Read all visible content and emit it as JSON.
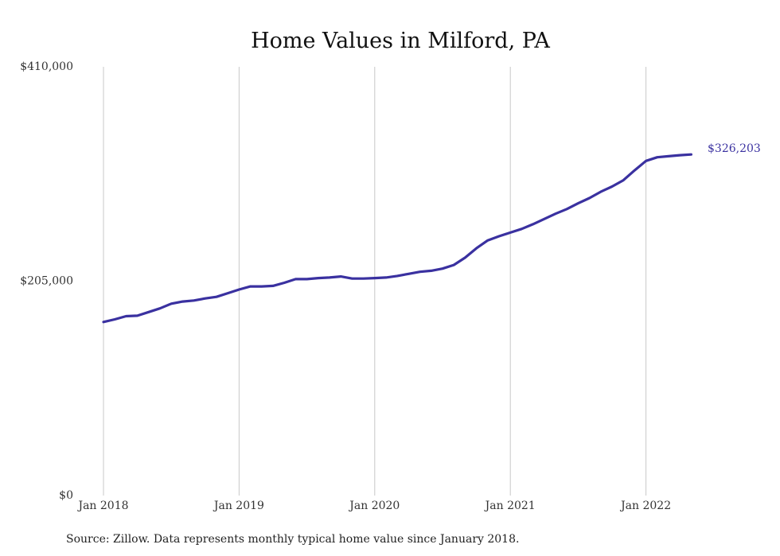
{
  "chart_data": {
    "type": "line",
    "title": "Home Values in Milford, PA",
    "xlabel": "",
    "ylabel": "",
    "ylim": [
      0,
      410000
    ],
    "y_ticks": [
      {
        "value": 0,
        "label": "$0"
      },
      {
        "value": 205000,
        "label": "$205,000"
      },
      {
        "value": 410000,
        "label": "$410,000"
      }
    ],
    "x_ticks": [
      {
        "value": "2018-01",
        "label": "Jan 2018"
      },
      {
        "value": "2019-01",
        "label": "Jan 2019"
      },
      {
        "value": "2020-01",
        "label": "Jan 2020"
      },
      {
        "value": "2021-01",
        "label": "Jan 2021"
      },
      {
        "value": "2022-01",
        "label": "Jan 2022"
      }
    ],
    "grid": "vertical",
    "line_color": "#3a31a0",
    "series": [
      {
        "x": [
          "2018-01",
          "2018-02",
          "2018-03",
          "2018-04",
          "2018-05",
          "2018-06",
          "2018-07",
          "2018-08",
          "2018-09",
          "2018-10",
          "2018-11",
          "2018-12",
          "2019-01",
          "2019-02",
          "2019-03",
          "2019-04",
          "2019-05",
          "2019-06",
          "2019-07",
          "2019-08",
          "2019-09",
          "2019-10",
          "2019-11",
          "2019-12",
          "2020-01",
          "2020-02",
          "2020-03",
          "2020-04",
          "2020-05",
          "2020-06",
          "2020-07",
          "2020-08",
          "2020-09",
          "2020-10",
          "2020-11",
          "2020-12",
          "2021-01",
          "2021-02",
          "2021-03",
          "2021-04",
          "2021-05",
          "2021-06",
          "2021-07",
          "2021-08",
          "2021-09",
          "2021-10",
          "2021-11",
          "2021-12",
          "2022-01",
          "2022-02",
          "2022-03",
          "2022-04",
          "2022-05"
        ],
        "values": [
          166000,
          168500,
          171500,
          172000,
          175500,
          179000,
          183500,
          185500,
          186500,
          188500,
          190000,
          193500,
          197000,
          200000,
          200000,
          200500,
          203500,
          207000,
          207000,
          208000,
          208500,
          209500,
          207500,
          207500,
          208000,
          208500,
          210000,
          212000,
          214000,
          215000,
          217000,
          220500,
          227500,
          236500,
          244000,
          248000,
          251500,
          255000,
          259500,
          264500,
          269500,
          274000,
          279500,
          284500,
          290500,
          295500,
          301500,
          311000,
          320000,
          323500,
          324500,
          325500,
          326203
        ]
      }
    ],
    "end_label": "$326,203",
    "source": "Source: Zillow. Data represents monthly typical home value since January 2018."
  }
}
